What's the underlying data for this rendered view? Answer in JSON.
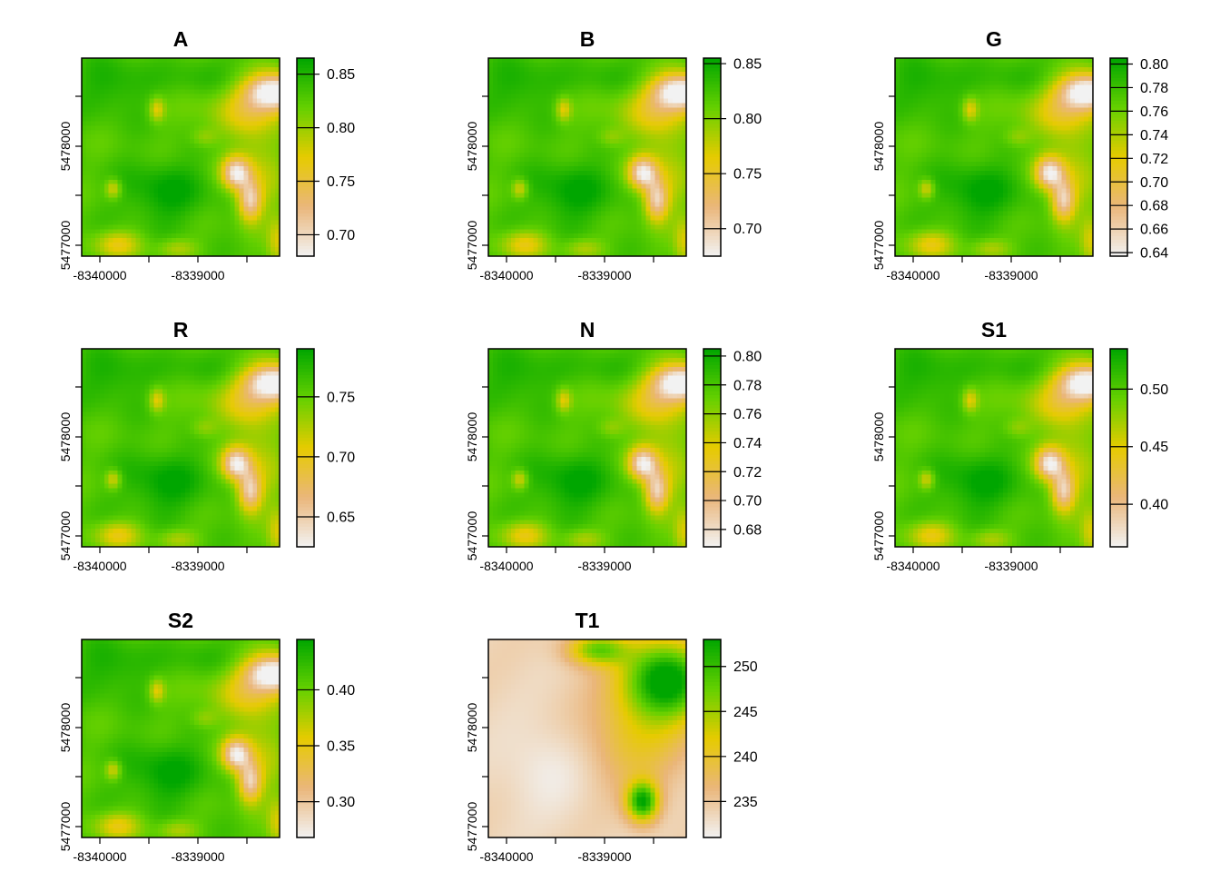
{
  "colors": {
    "ramp": [
      "#F2F2F2",
      "#EAB67A",
      "#E6CB00",
      "#64D000",
      "#00A600"
    ]
  },
  "chart_data": [
    {
      "type": "heatmap",
      "title": "A",
      "variant": "veg",
      "xticks": [
        "-8340000",
        "-8339000"
      ],
      "yticks": [
        "5477000",
        "5478000"
      ],
      "range": [
        0.68,
        0.865
      ],
      "legend_ticks": [
        0.7,
        0.75,
        0.8,
        0.85
      ],
      "legend_labels": [
        "0.70",
        "0.75",
        "0.80",
        "0.85"
      ]
    },
    {
      "type": "heatmap",
      "title": "B",
      "variant": "veg",
      "xticks": [
        "-8340000",
        "-8339000"
      ],
      "yticks": [
        "5477000",
        "5478000"
      ],
      "range": [
        0.675,
        0.855
      ],
      "legend_ticks": [
        0.7,
        0.75,
        0.8,
        0.85
      ],
      "legend_labels": [
        "0.70",
        "0.75",
        "0.80",
        "0.85"
      ]
    },
    {
      "type": "heatmap",
      "title": "G",
      "variant": "veg",
      "xticks": [
        "-8340000",
        "-8339000"
      ],
      "yticks": [
        "5477000",
        "5478000"
      ],
      "range": [
        0.637,
        0.805
      ],
      "legend_ticks": [
        0.64,
        0.66,
        0.68,
        0.7,
        0.72,
        0.74,
        0.76,
        0.78,
        0.8
      ],
      "legend_labels": [
        "0.64",
        "0.66",
        "0.68",
        "0.70",
        "0.72",
        "0.74",
        "0.76",
        "0.78",
        "0.80"
      ]
    },
    {
      "type": "heatmap",
      "title": "R",
      "variant": "veg",
      "xticks": [
        "-8340000",
        "-8339000"
      ],
      "yticks": [
        "5477000",
        "5478000"
      ],
      "range": [
        0.625,
        0.79
      ],
      "legend_ticks": [
        0.65,
        0.7,
        0.75
      ],
      "legend_labels": [
        "0.65",
        "0.70",
        "0.75"
      ]
    },
    {
      "type": "heatmap",
      "title": "N",
      "variant": "veg",
      "xticks": [
        "-8340000",
        "-8339000"
      ],
      "yticks": [
        "5477000",
        "5478000"
      ],
      "range": [
        0.668,
        0.805
      ],
      "legend_ticks": [
        0.68,
        0.7,
        0.72,
        0.74,
        0.76,
        0.78,
        0.8
      ],
      "legend_labels": [
        "0.68",
        "0.70",
        "0.72",
        "0.74",
        "0.76",
        "0.78",
        "0.80"
      ]
    },
    {
      "type": "heatmap",
      "title": "S1",
      "variant": "veg",
      "xticks": [
        "-8340000",
        "-8339000"
      ],
      "yticks": [
        "5477000",
        "5478000"
      ],
      "range": [
        0.363,
        0.535
      ],
      "legend_ticks": [
        0.4,
        0.45,
        0.5
      ],
      "legend_labels": [
        "0.40",
        "0.45",
        "0.50"
      ]
    },
    {
      "type": "heatmap",
      "title": "S2",
      "variant": "veg",
      "xticks": [
        "-8340000",
        "-8339000"
      ],
      "yticks": [
        "5477000",
        "5478000"
      ],
      "range": [
        0.268,
        0.445
      ],
      "legend_ticks": [
        0.3,
        0.35,
        0.4
      ],
      "legend_labels": [
        "0.30",
        "0.35",
        "0.40"
      ]
    },
    {
      "type": "heatmap",
      "title": "T1",
      "variant": "temp",
      "xticks": [
        "-8340000",
        "-8339000"
      ],
      "yticks": [
        "5477000",
        "5478000"
      ],
      "range": [
        231,
        253
      ],
      "legend_ticks": [
        235,
        240,
        245,
        250
      ],
      "legend_labels": [
        "235",
        "240",
        "245",
        "250"
      ]
    }
  ]
}
